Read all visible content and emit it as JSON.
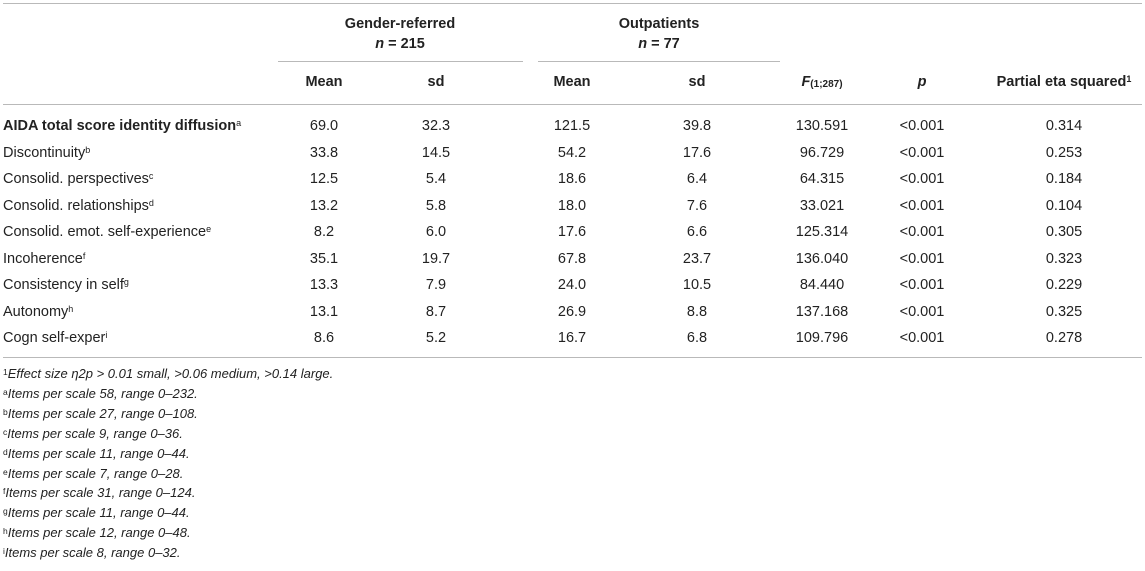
{
  "groups": {
    "gender": {
      "title": "Gender-referred",
      "n_label": "n",
      "n_value": "= 215"
    },
    "outpatients": {
      "title": "Outpatients",
      "n_label": "n",
      "n_value": "= 77"
    }
  },
  "columns": {
    "mean1": "Mean",
    "sd1": "sd",
    "mean2": "Mean",
    "sd2": "sd",
    "f_label": "F",
    "f_sub": "(1;287)",
    "p": "p",
    "eta": "Partial eta squared",
    "eta_sup": "1"
  },
  "rows": [
    {
      "label": "AIDA total score identity diffusion",
      "sup": "a",
      "m1": "69.0",
      "sd1": "32.3",
      "m2": "121.5",
      "sd2": "39.8",
      "f": "130.591",
      "p": "<0.001",
      "eta": "0.314"
    },
    {
      "label": "Discontinuity",
      "sup": "b",
      "m1": "33.8",
      "sd1": "14.5",
      "m2": "54.2",
      "sd2": "17.6",
      "f": "96.729",
      "p": "<0.001",
      "eta": "0.253"
    },
    {
      "label": "Consolid. perspectives",
      "sup": "c",
      "m1": "12.5",
      "sd1": "5.4",
      "m2": "18.6",
      "sd2": "6.4",
      "f": "64.315",
      "p": "<0.001",
      "eta": "0.184"
    },
    {
      "label": "Consolid. relationships",
      "sup": "d",
      "m1": "13.2",
      "sd1": "5.8",
      "m2": "18.0",
      "sd2": "7.6",
      "f": "33.021",
      "p": "<0.001",
      "eta": "0.104"
    },
    {
      "label": "Consolid. emot. self-experience",
      "sup": "e",
      "m1": "8.2",
      "sd1": "6.0",
      "m2": "17.6",
      "sd2": "6.6",
      "f": "125.314",
      "p": "<0.001",
      "eta": "0.305"
    },
    {
      "label": "Incoherence",
      "sup": "f",
      "m1": "35.1",
      "sd1": "19.7",
      "m2": "67.8",
      "sd2": "23.7",
      "f": "136.040",
      "p": "<0.001",
      "eta": "0.323"
    },
    {
      "label": "Consistency in self",
      "sup": "g",
      "m1": "13.3",
      "sd1": "7.9",
      "m2": "24.0",
      "sd2": "10.5",
      "f": "84.440",
      "p": "<0.001",
      "eta": "0.229"
    },
    {
      "label": "Autonomy",
      "sup": "h",
      "m1": "13.1",
      "sd1": "8.7",
      "m2": "26.9",
      "sd2": "8.8",
      "f": "137.168",
      "p": "<0.001",
      "eta": "0.325"
    },
    {
      "label": "Cogn self-exper",
      "sup": "i",
      "m1": "8.6",
      "sd1": "5.2",
      "m2": "16.7",
      "sd2": "6.8",
      "f": "109.796",
      "p": "<0.001",
      "eta": "0.278"
    }
  ],
  "notes": [
    {
      "sup": "1",
      "text": "Effect size η2p > 0.01 small, >0.06 medium, >0.14 large."
    },
    {
      "sup": "a",
      "text": "Items per scale 58, range 0–232."
    },
    {
      "sup": "b",
      "text": "Items per scale 27, range 0–108."
    },
    {
      "sup": "c",
      "text": "Items per scale 9, range 0–36."
    },
    {
      "sup": "d",
      "text": "Items per scale 11, range 0–44."
    },
    {
      "sup": "e",
      "text": "Items per scale 7, range 0–28."
    },
    {
      "sup": "f",
      "text": "Items per scale 31, range 0–124."
    },
    {
      "sup": "g",
      "text": "Items per scale 11, range 0–44."
    },
    {
      "sup": "h",
      "text": "Items per scale 12, range 0–48."
    },
    {
      "sup": "i",
      "text": "Items per scale 8, range 0–32."
    }
  ]
}
